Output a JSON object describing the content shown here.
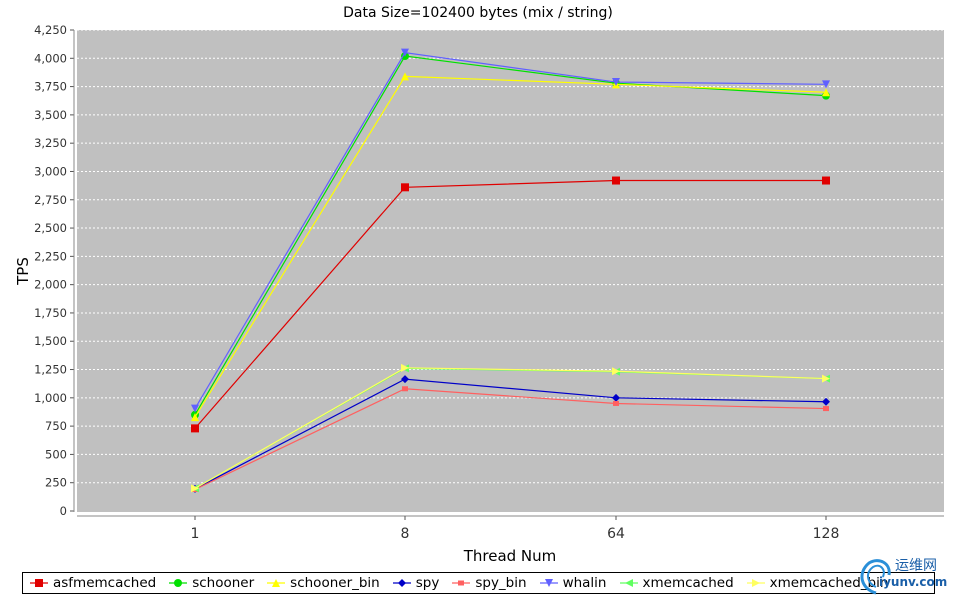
{
  "chart_data": {
    "type": "line",
    "title": "Data Size=102400 bytes (mix / string)",
    "xlabel": "Thread Num",
    "ylabel": "TPS",
    "categories": [
      "1",
      "8",
      "64",
      "128"
    ],
    "ylim": [
      0,
      4250
    ],
    "yticks": [
      0,
      250,
      500,
      750,
      1000,
      1250,
      1500,
      1750,
      2000,
      2250,
      2500,
      2750,
      3000,
      3250,
      3500,
      3750,
      4000,
      4250
    ],
    "ytick_labels": [
      "0",
      "250",
      "500",
      "750",
      "1,000",
      "1,250",
      "1,500",
      "1,750",
      "2,000",
      "2,250",
      "2,500",
      "2,750",
      "3,000",
      "3,250",
      "3,500",
      "3,750",
      "4,000",
      "4,250"
    ],
    "grid": true,
    "legend_position": "bottom",
    "series": [
      {
        "name": "asfmemcached",
        "color": "#e00000",
        "marker": "square",
        "values": [
          730,
          2860,
          2920,
          2920
        ]
      },
      {
        "name": "schooner",
        "color": "#00e000",
        "marker": "circle",
        "values": [
          850,
          4020,
          3780,
          3670
        ]
      },
      {
        "name": "schooner_bin",
        "color": "#ffff00",
        "marker": "triangle-up",
        "values": [
          830,
          3840,
          3770,
          3700
        ]
      },
      {
        "name": "spy",
        "color": "#0000c8",
        "marker": "diamond",
        "values": [
          195,
          1165,
          1000,
          965
        ]
      },
      {
        "name": "spy_bin",
        "color": "#ff6060",
        "marker": "small-square",
        "values": [
          190,
          1080,
          950,
          905
        ]
      },
      {
        "name": "whalin",
        "color": "#6060ff",
        "marker": "triangle-down",
        "values": [
          905,
          4050,
          3790,
          3770
        ]
      },
      {
        "name": "xmemcached",
        "color": "#60ff60",
        "marker": "triangle-left",
        "values": [
          200,
          1260,
          1230,
          1170
        ]
      },
      {
        "name": "xmemcached_bin",
        "color": "#ffff60",
        "marker": "triangle-right",
        "values": [
          200,
          1265,
          1235,
          1170
        ]
      }
    ]
  },
  "watermark": {
    "top": "运维网",
    "bottom": "iyunv.com"
  }
}
